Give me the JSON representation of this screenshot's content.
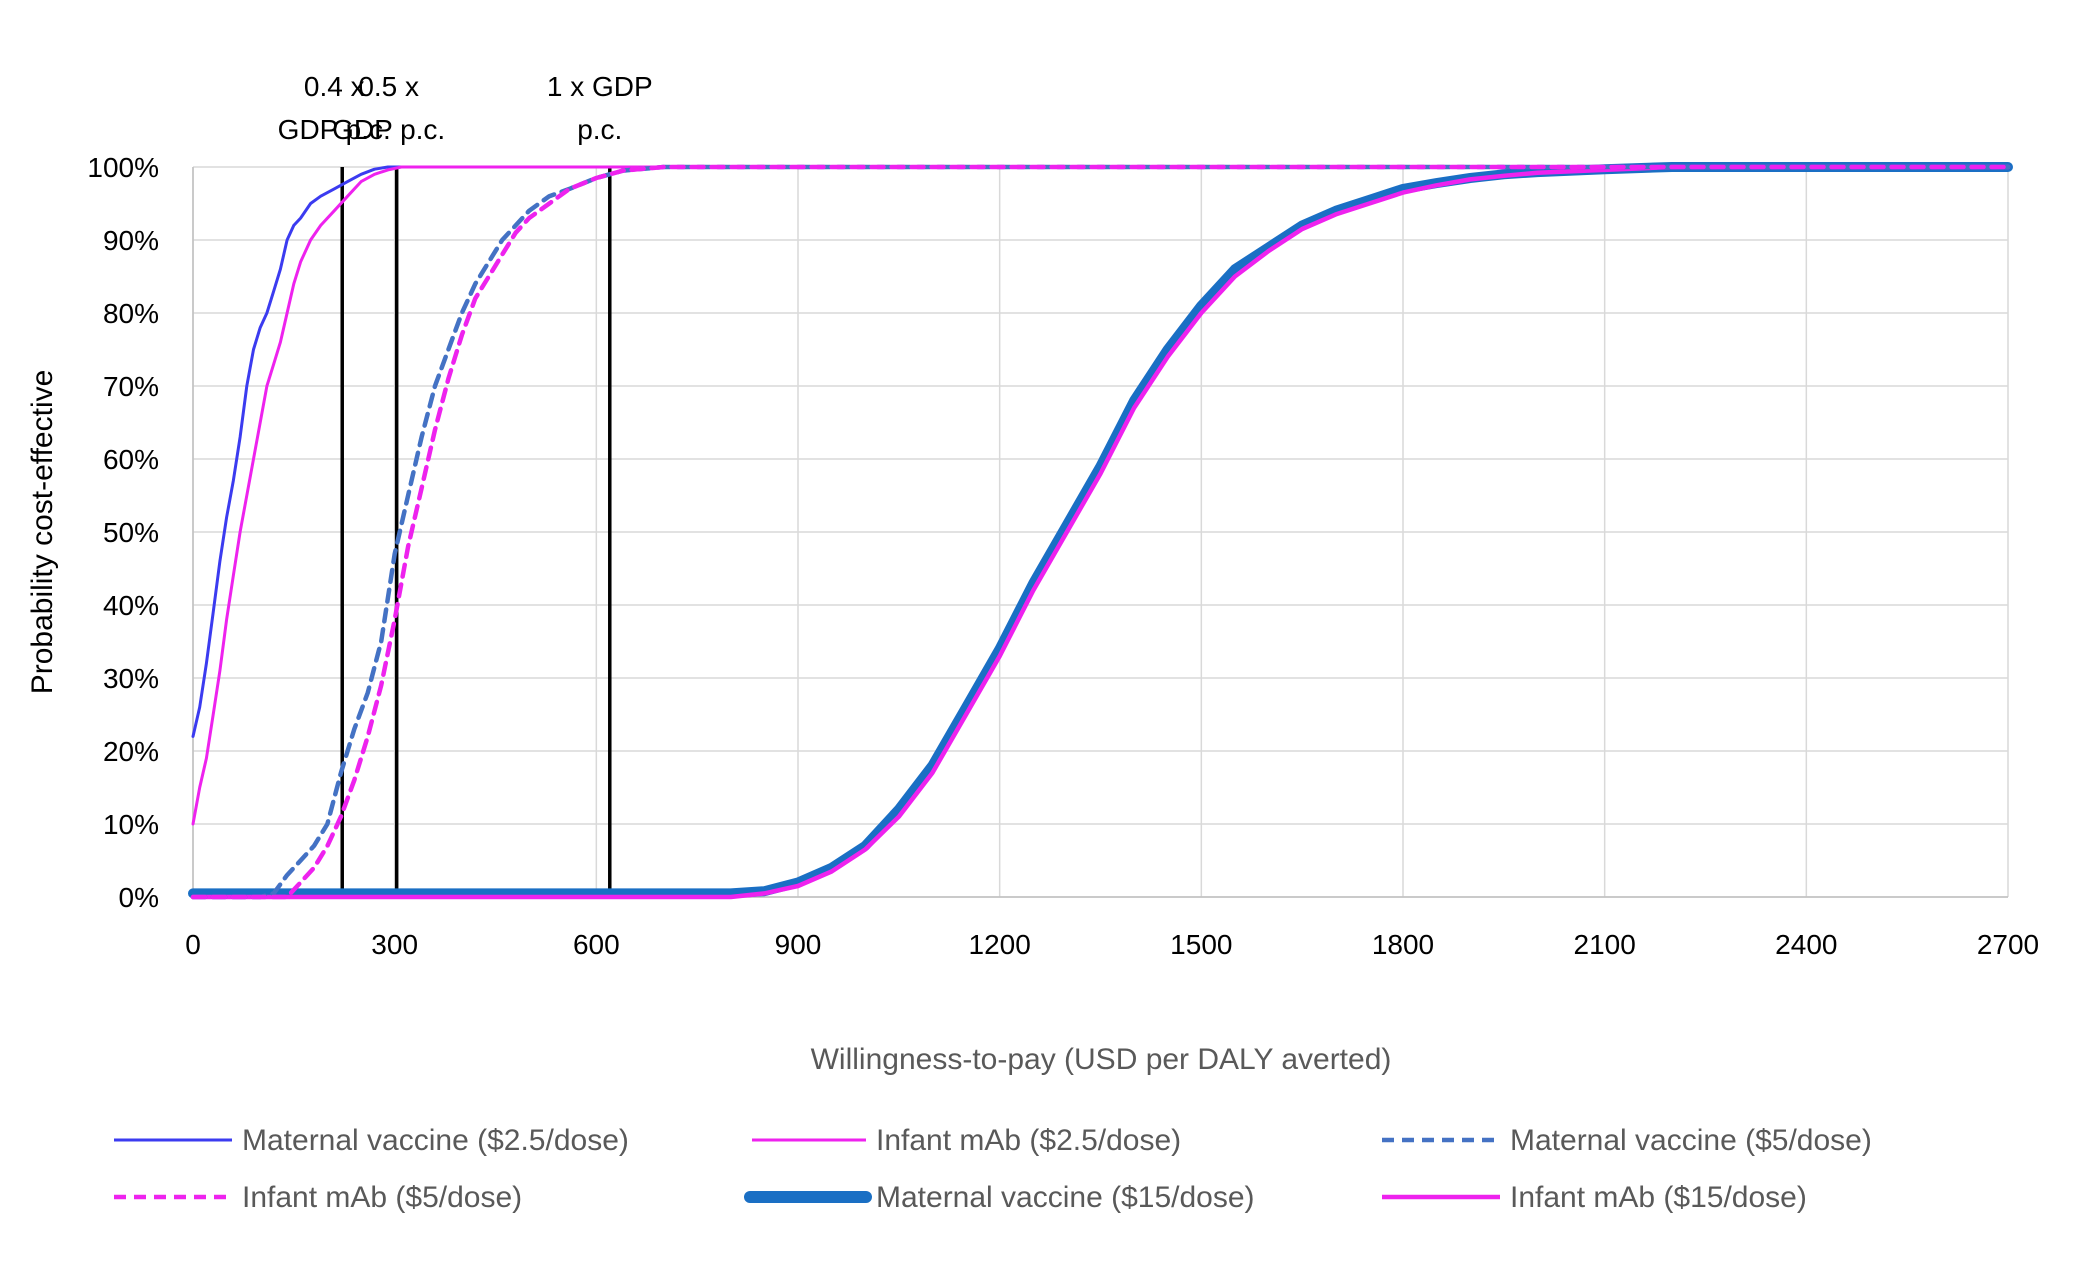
{
  "chart_data": {
    "type": "line",
    "title": "",
    "xlabel": "Willingness-to-pay (USD per DALY averted)",
    "ylabel": "Probability cost-effective",
    "xlim": [
      0,
      2700
    ],
    "ylim": [
      0,
      100
    ],
    "x_ticks": [
      "0",
      "300",
      "600",
      "900",
      "1200",
      "1500",
      "1800",
      "2100",
      "2400",
      "2700"
    ],
    "x_tick_values": [
      0,
      300,
      600,
      900,
      1200,
      1500,
      1800,
      2100,
      2400,
      2700
    ],
    "y_ticks": [
      "0%",
      "10%",
      "20%",
      "30%",
      "40%",
      "50%",
      "60%",
      "70%",
      "80%",
      "90%",
      "100%"
    ],
    "y_tick_values": [
      0,
      10,
      20,
      30,
      40,
      50,
      60,
      70,
      80,
      90,
      100
    ],
    "grid": true,
    "legend_position": "bottom",
    "thresholds": [
      {
        "x": 222,
        "label_lines": [
          "0.4 x",
          "GDP p.c."
        ]
      },
      {
        "x": 303,
        "label_lines": [
          "0.5 x",
          "GDP p.c."
        ]
      },
      {
        "x": 620,
        "label_lines": [
          "1 x GDP",
          "p.c."
        ]
      }
    ],
    "series": [
      {
        "name": "Maternal vaccine ($2.5/dose)",
        "color": "#3b3bf0",
        "style": "solid",
        "weight": "thin",
        "x": [
          0,
          10,
          20,
          30,
          40,
          50,
          60,
          70,
          80,
          90,
          100,
          110,
          120,
          130,
          140,
          150,
          160,
          175,
          190,
          210,
          230,
          250,
          270,
          290,
          300,
          2700
        ],
        "y": [
          22,
          26,
          32,
          39,
          46,
          52,
          57,
          63,
          70,
          75,
          78,
          80,
          83,
          86,
          90,
          92,
          93,
          95,
          96,
          97,
          98,
          99,
          99.7,
          100,
          100,
          100
        ]
      },
      {
        "name": "Infant mAb ($2.5/dose)",
        "color": "#ee22ee",
        "style": "solid",
        "weight": "thin",
        "x": [
          0,
          10,
          20,
          30,
          40,
          50,
          60,
          70,
          80,
          90,
          100,
          110,
          120,
          130,
          140,
          150,
          160,
          175,
          190,
          210,
          230,
          250,
          270,
          290,
          310,
          330,
          2700
        ],
        "y": [
          10,
          15,
          19,
          25,
          31,
          38,
          44,
          50,
          55,
          60,
          65,
          70,
          73,
          76,
          80,
          84,
          87,
          90,
          92,
          94,
          96,
          98,
          99,
          99.6,
          100,
          100,
          100
        ]
      },
      {
        "name": "Maternal vaccine ($5/dose)",
        "color": "#4472c4",
        "style": "dashed",
        "weight": "medium",
        "x": [
          0,
          100,
          120,
          140,
          160,
          180,
          200,
          220,
          240,
          260,
          280,
          300,
          320,
          340,
          360,
          380,
          400,
          420,
          440,
          460,
          480,
          500,
          530,
          560,
          600,
          640,
          700,
          2700
        ],
        "y": [
          0,
          0,
          0.5,
          3,
          5,
          7,
          10,
          17,
          23,
          28,
          35,
          47,
          55,
          63,
          70,
          75,
          80,
          84,
          87,
          90,
          92,
          94,
          96,
          97,
          98.5,
          99.5,
          100,
          100
        ]
      },
      {
        "name": "Infant mAb ($5/dose)",
        "color": "#ee22ee",
        "style": "dashed",
        "weight": "medium",
        "x": [
          0,
          120,
          140,
          160,
          180,
          200,
          220,
          240,
          260,
          280,
          300,
          320,
          340,
          360,
          380,
          400,
          420,
          440,
          460,
          480,
          500,
          530,
          560,
          600,
          640,
          700,
          2700
        ],
        "y": [
          0,
          0,
          0,
          2,
          4,
          7,
          11,
          16,
          22,
          29,
          38,
          48,
          56,
          64,
          71,
          77,
          82,
          85,
          88,
          91,
          93,
          95,
          97,
          98.5,
          99.5,
          100,
          100
        ]
      },
      {
        "name": "Maternal vaccine ($15/dose)",
        "color": "#1a6fc4",
        "style": "solid",
        "weight": "thick",
        "x": [
          0,
          800,
          850,
          900,
          950,
          1000,
          1050,
          1100,
          1150,
          1200,
          1250,
          1300,
          1350,
          1400,
          1450,
          1500,
          1550,
          1600,
          1650,
          1700,
          1750,
          1800,
          1850,
          1900,
          1950,
          2000,
          2100,
          2200,
          2300,
          2700
        ],
        "y": [
          0.5,
          0.5,
          0.8,
          2,
          4,
          7,
          12,
          18,
          26,
          34,
          43,
          51,
          59,
          68,
          75,
          81,
          86,
          89,
          92,
          94,
          95.5,
          97,
          97.8,
          98.5,
          99,
          99.3,
          99.7,
          100,
          100,
          100
        ]
      },
      {
        "name": "Infant mAb ($15/dose)",
        "color": "#ee22ee",
        "style": "solid",
        "weight": "medium",
        "x": [
          0,
          800,
          850,
          900,
          950,
          1000,
          1050,
          1100,
          1150,
          1200,
          1250,
          1300,
          1350,
          1400,
          1450,
          1500,
          1550,
          1600,
          1650,
          1700,
          1750,
          1800,
          1850,
          1900,
          1950,
          2000,
          2100,
          2200,
          2300,
          2700
        ],
        "y": [
          0,
          0,
          0.5,
          1.5,
          3.5,
          6.5,
          11,
          17,
          25,
          33,
          42,
          50,
          58,
          67,
          74,
          80,
          85,
          88.5,
          91.5,
          93.5,
          95,
          96.5,
          97.5,
          98.3,
          98.8,
          99.2,
          99.6,
          100,
          100,
          100
        ]
      }
    ]
  }
}
